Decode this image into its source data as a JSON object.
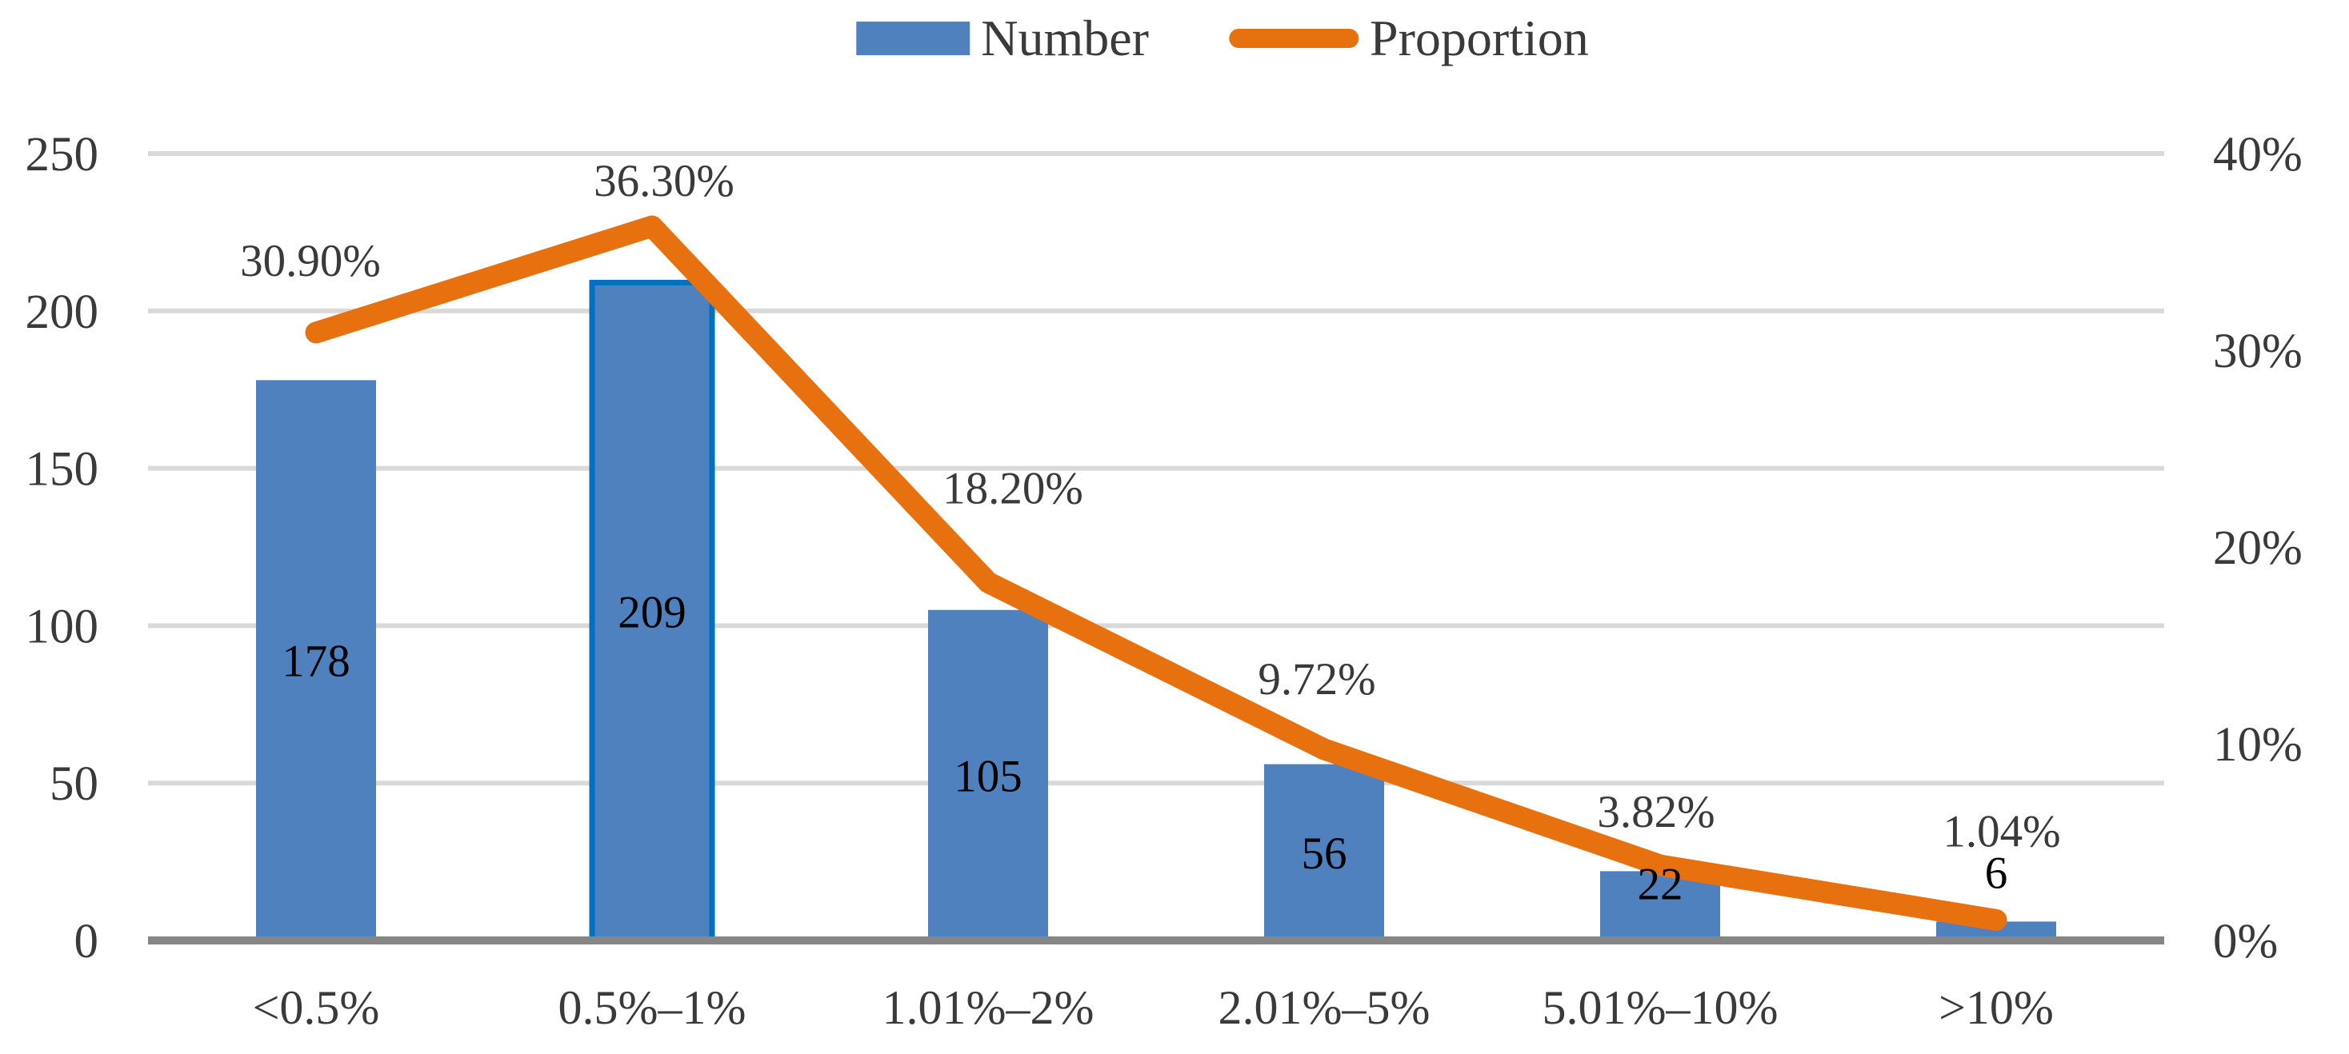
{
  "legend": {
    "items": [
      {
        "label": "Number",
        "swatch": "bar",
        "color": "#4E81BD"
      },
      {
        "label": "Proportion",
        "swatch": "line",
        "color": "#E7710E"
      }
    ]
  },
  "chart_data": {
    "type": "bar",
    "subtype": "combo-bar-line-dual-axis",
    "title": "",
    "categories": [
      "<0.5%",
      "0.5%–1%",
      "1.01%–2%",
      "2.01%–5%",
      "5.01%–10%",
      ">10%"
    ],
    "series": [
      {
        "name": "Number",
        "type": "bar",
        "axis": "left",
        "values": [
          178,
          209,
          105,
          56,
          22,
          6
        ],
        "data_labels": [
          "178",
          "209",
          "105",
          "56",
          "22",
          "6"
        ],
        "color": "#4E81BD",
        "highlighted_bar_index": 1,
        "highlight_border_color": "#0070C0"
      },
      {
        "name": "Proportion",
        "type": "line",
        "axis": "right",
        "values": [
          30.9,
          36.3,
          18.2,
          9.72,
          3.82,
          1.04
        ],
        "data_labels": [
          "30.90%",
          "36.30%",
          "18.20%",
          "9.72%",
          "3.82%",
          "1.04%"
        ],
        "color": "#E7710E"
      }
    ],
    "left_axis": {
      "min": 0,
      "max": 250,
      "tick_interval": 50,
      "tick_labels": [
        "0",
        "50",
        "100",
        "150",
        "200",
        "250"
      ]
    },
    "right_axis": {
      "min": 0,
      "max": 40,
      "tick_interval": 10,
      "tick_labels": [
        "0%",
        "10%",
        "20%",
        "30%",
        "40%"
      ]
    },
    "grid": true,
    "legend_position": "top",
    "colors": {
      "gridline": "#D9D9D9",
      "baseline": "#868686",
      "axis_text": "#3A3A3A",
      "bar_label_text": "#000000",
      "data_label_text": "#3A3A3A"
    }
  }
}
